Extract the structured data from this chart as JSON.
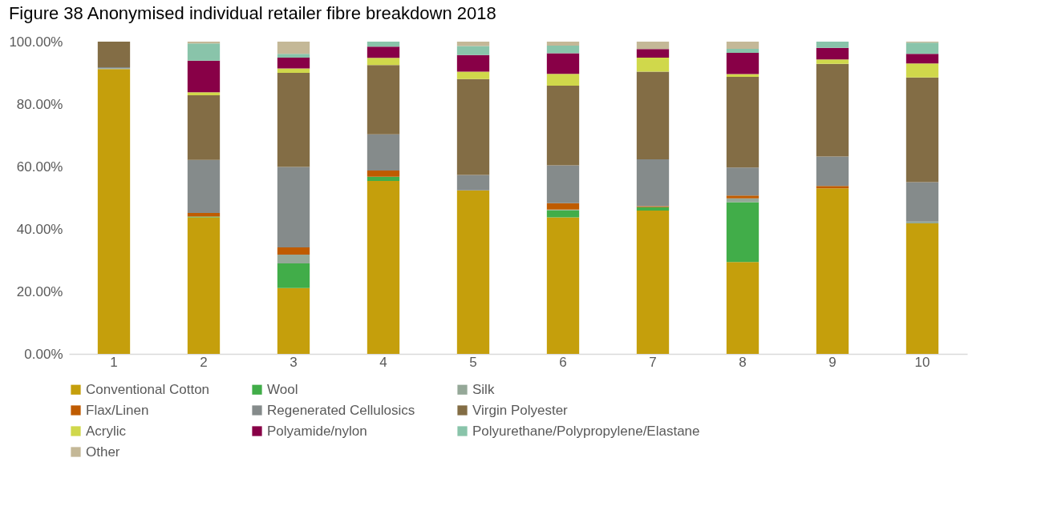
{
  "chart_data": {
    "type": "bar",
    "stacked": true,
    "title": "Figure 38 Anonymised individual retailer fibre breakdown 2018",
    "categories": [
      "1",
      "2",
      "3",
      "4",
      "5",
      "6",
      "7",
      "8",
      "9",
      "10"
    ],
    "ylim": [
      0,
      100
    ],
    "yticks": [
      {
        "value": 0,
        "label": "0.00%"
      },
      {
        "value": 20,
        "label": "20.00%"
      },
      {
        "value": 40,
        "label": "40.00%"
      },
      {
        "value": 60,
        "label": "60.00%"
      },
      {
        "value": 80,
        "label": "80.00%"
      },
      {
        "value": 100,
        "label": "100.00%"
      }
    ],
    "grid": false,
    "legend": "bottom",
    "series": [
      {
        "name": "Conventional Cotton",
        "color": "#c59f0c",
        "values": [
          91.2,
          43.7,
          21.1,
          55.4,
          52.4,
          43.7,
          45.9,
          29.4,
          53.0,
          41.8
        ]
      },
      {
        "name": "Wool",
        "color": "#41ad49",
        "values": [
          0,
          0.3,
          7.9,
          1.3,
          0,
          2.3,
          1.1,
          19.2,
          0,
          0
        ]
      },
      {
        "name": "Silk",
        "color": "#95a898",
        "values": [
          0.3,
          0,
          2.8,
          0,
          0,
          0.2,
          0,
          1.2,
          0,
          0.6
        ]
      },
      {
        "name": "Flax/Linen",
        "color": "#bf5b00",
        "values": [
          0,
          1.1,
          2.3,
          2.0,
          0,
          2.1,
          0.3,
          0.9,
          0.8,
          0
        ]
      },
      {
        "name": "Regenerated Cellulosics",
        "color": "#858b8b",
        "values": [
          0.3,
          17.0,
          25.8,
          11.6,
          4.9,
          12.1,
          15.0,
          9.0,
          9.4,
          12.6
        ]
      },
      {
        "name": "Virgin Polyester",
        "color": "#836d45",
        "values": [
          8.2,
          20.7,
          30.1,
          22.2,
          30.7,
          25.5,
          28.1,
          29.0,
          29.7,
          33.5
        ]
      },
      {
        "name": "Acrylic",
        "color": "#d0d84b",
        "values": [
          0,
          1.0,
          1.4,
          2.3,
          2.4,
          3.8,
          4.5,
          0.9,
          1.4,
          4.5
        ]
      },
      {
        "name": "Polyamide/nylon",
        "color": "#880047",
        "values": [
          0,
          10.1,
          3.5,
          3.6,
          5.3,
          6.6,
          2.7,
          6.8,
          3.7,
          3.1
        ]
      },
      {
        "name": "Polyurethane/Polypropylene/Elastane",
        "color": "#89c4aa",
        "values": [
          0,
          5.5,
          1.2,
          1.6,
          2.9,
          2.4,
          0,
          1.3,
          2.0,
          3.6
        ]
      },
      {
        "name": "Other",
        "color": "#c4b897",
        "values": [
          0,
          0.6,
          3.9,
          0,
          1.4,
          1.3,
          2.4,
          2.3,
          0,
          0.3
        ]
      }
    ]
  }
}
